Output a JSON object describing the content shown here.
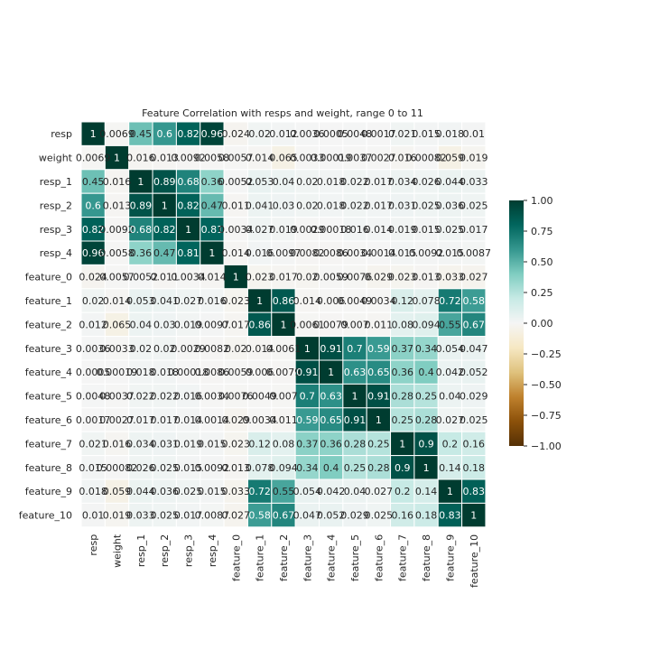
{
  "chart_data": {
    "type": "heatmap",
    "title": "Feature Correlation with resps and weight, range 0 to 11",
    "xlabel": "",
    "ylabel": "",
    "labels": [
      "resp",
      "weight",
      "resp_1",
      "resp_2",
      "resp_3",
      "resp_4",
      "feature_0",
      "feature_1",
      "feature_2",
      "feature_3",
      "feature_4",
      "feature_5",
      "feature_6",
      "feature_7",
      "feature_8",
      "feature_9",
      "feature_10"
    ],
    "cell_text": [
      [
        "1",
        "0.0069",
        "0.45",
        "0.6",
        "0.82",
        "0.96",
        "0.024",
        "0.02",
        "0.012",
        "0.0036",
        "0.0005",
        "0.0048",
        "0.0017",
        "0.021",
        "0.015",
        "0.018",
        "0.01"
      ],
      [
        "0.0069",
        "1",
        "0.016",
        "0.013",
        "0.0092",
        "0.0058",
        "0.0057",
        "0.014",
        "0.065",
        "0.0033",
        "0.00019",
        "0.0037",
        "0.0027",
        "0.016",
        "0.00082",
        "0.059",
        "0.019"
      ],
      [
        "0.45",
        "0.016",
        "1",
        "0.89",
        "0.68",
        "0.36",
        "0.0052",
        "0.053",
        "0.04",
        "0.02",
        "0.018",
        "0.022",
        "0.017",
        "0.034",
        "0.026",
        "0.044",
        "0.033"
      ],
      [
        "0.6",
        "0.013",
        "0.89",
        "1",
        "0.82",
        "0.47",
        "0.011",
        "0.041",
        "0.03",
        "0.02",
        "0.018",
        "0.022",
        "0.017",
        "0.031",
        "0.025",
        "0.036",
        "0.025"
      ],
      [
        "0.82",
        "0.0092",
        "0.68",
        "0.82",
        "1",
        "0.81",
        "0.0034",
        "0.027",
        "0.019",
        "0.0029",
        "0.00018",
        "0.016",
        "0.014",
        "0.019",
        "0.015",
        "0.025",
        "0.017"
      ],
      [
        "0.96",
        "0.0058",
        "0.36",
        "0.47",
        "0.81",
        "1",
        "0.014",
        "0.016",
        "0.0097",
        "0.0082",
        "0.0086",
        "0.0034",
        "0.0014",
        "0.015",
        "0.0092",
        "0.015",
        "0.0087"
      ],
      [
        "0.024",
        "0.0057",
        "0.0052",
        "0.011",
        "0.0034",
        "0.014",
        "1",
        "0.023",
        "0.017",
        "0.02",
        "0.0059",
        "0.0076",
        "0.029",
        "0.023",
        "0.013",
        "0.033",
        "0.027"
      ],
      [
        "0.02",
        "0.014",
        "0.053",
        "0.041",
        "0.027",
        "0.016",
        "0.023",
        "1",
        "0.86",
        "0.014",
        "0.006",
        "0.0049",
        "0.0034",
        "0.12",
        "0.078",
        "0.72",
        "0.58"
      ],
      [
        "0.012",
        "0.065",
        "0.04",
        "0.03",
        "0.019",
        "0.0097",
        "0.017",
        "0.86",
        "1",
        "0.0061",
        "0.0079",
        "0.007",
        "0.011",
        "0.08",
        "0.094",
        "0.55",
        "0.67"
      ],
      [
        "0.0036",
        "0.0033",
        "0.02",
        "0.02",
        "0.0029",
        "0.0082",
        "0.02",
        "0.014",
        "0.0061",
        "1",
        "0.91",
        "0.7",
        "0.59",
        "0.37",
        "0.34",
        "0.054",
        "0.047"
      ],
      [
        "0.0005",
        "0.00019",
        "0.018",
        "0.018",
        "0.00018",
        "0.0086",
        "0.0059",
        "0.006",
        "0.0079",
        "0.91",
        "1",
        "0.63",
        "0.65",
        "0.36",
        "0.4",
        "0.042",
        "0.052"
      ],
      [
        "0.0048",
        "0.0037",
        "0.022",
        "0.022",
        "0.016",
        "0.0034",
        "0.0076",
        "0.0049",
        "0.007",
        "0.7",
        "0.63",
        "1",
        "0.91",
        "0.28",
        "0.25",
        "0.04",
        "0.029"
      ],
      [
        "0.0017",
        "0.0027",
        "0.017",
        "0.017",
        "0.014",
        "0.0014",
        "0.029",
        "0.0034",
        "0.011",
        "0.59",
        "0.65",
        "0.91",
        "1",
        "0.25",
        "0.28",
        "0.027",
        "0.025"
      ],
      [
        "0.021",
        "0.016",
        "0.034",
        "0.031",
        "0.019",
        "0.015",
        "0.023",
        "0.12",
        "0.08",
        "0.37",
        "0.36",
        "0.28",
        "0.25",
        "1",
        "0.9",
        "0.2",
        "0.16"
      ],
      [
        "0.015",
        "0.00082",
        "0.026",
        "0.025",
        "0.015",
        "0.0092",
        "0.013",
        "0.078",
        "0.094",
        "0.34",
        "0.4",
        "0.25",
        "0.28",
        "0.9",
        "1",
        "0.14",
        "0.18"
      ],
      [
        "0.018",
        "0.059",
        "0.044",
        "0.036",
        "0.025",
        "0.015",
        "0.033",
        "0.72",
        "0.55",
        "0.054",
        "0.042",
        "0.04",
        "0.027",
        "0.2",
        "0.14",
        "1",
        "0.83"
      ],
      [
        "0.01",
        "0.019",
        "0.033",
        "0.025",
        "0.017",
        "0.0087",
        "0.027",
        "0.58",
        "0.67",
        "0.047",
        "0.052",
        "0.029",
        "0.025",
        "0.16",
        "0.18",
        "0.83",
        "1"
      ]
    ],
    "values": [
      [
        1,
        -0.0069,
        0.45,
        0.6,
        0.82,
        0.96,
        -0.024,
        0.02,
        0.012,
        0.0036,
        0.0005,
        0.0048,
        0.0017,
        0.021,
        0.015,
        0.018,
        0.01
      ],
      [
        -0.0069,
        1,
        -0.016,
        -0.013,
        -0.0092,
        -0.0058,
        -0.0057,
        -0.014,
        -0.065,
        -0.0033,
        -0.00019,
        -0.0037,
        -0.0027,
        -0.016,
        -0.00082,
        -0.059,
        -0.019
      ],
      [
        0.45,
        -0.016,
        1,
        0.89,
        0.68,
        0.36,
        0.0052,
        0.053,
        0.04,
        0.02,
        0.018,
        0.022,
        0.017,
        0.034,
        0.026,
        0.044,
        0.033
      ],
      [
        0.6,
        -0.013,
        0.89,
        1,
        0.82,
        0.47,
        -0.011,
        0.041,
        0.03,
        0.02,
        0.018,
        0.022,
        0.017,
        0.031,
        0.025,
        0.036,
        0.025
      ],
      [
        0.82,
        -0.0092,
        0.68,
        0.82,
        1,
        0.81,
        -0.0034,
        0.027,
        0.019,
        -0.0029,
        -0.00018,
        0.016,
        0.014,
        0.019,
        0.015,
        0.025,
        0.017
      ],
      [
        0.96,
        -0.0058,
        0.36,
        0.47,
        0.81,
        1,
        -0.014,
        0.016,
        0.0097,
        -0.0082,
        -0.0086,
        -0.0034,
        -0.0014,
        0.015,
        0.0092,
        0.015,
        0.0087
      ],
      [
        -0.024,
        -0.0057,
        0.0052,
        -0.011,
        -0.0034,
        -0.014,
        1,
        -0.023,
        -0.017,
        -0.02,
        -0.0059,
        -0.0076,
        -0.029,
        -0.023,
        -0.013,
        -0.033,
        -0.027
      ],
      [
        0.02,
        -0.014,
        0.053,
        0.041,
        0.027,
        0.016,
        -0.023,
        1,
        0.86,
        -0.014,
        -0.006,
        -0.0049,
        -0.0034,
        0.12,
        0.078,
        0.72,
        0.58
      ],
      [
        0.012,
        -0.065,
        0.04,
        0.03,
        0.019,
        0.0097,
        -0.017,
        0.86,
        1,
        -0.0061,
        -0.0079,
        -0.007,
        -0.011,
        0.08,
        0.094,
        0.55,
        0.67
      ],
      [
        0.0036,
        -0.0033,
        0.02,
        0.02,
        -0.0029,
        -0.0082,
        -0.02,
        -0.014,
        -0.0061,
        1,
        0.91,
        0.7,
        0.59,
        0.37,
        0.34,
        0.054,
        0.047
      ],
      [
        0.0005,
        -0.00019,
        0.018,
        0.018,
        -0.00018,
        -0.0086,
        -0.0059,
        -0.006,
        -0.0079,
        0.91,
        1,
        0.63,
        0.65,
        0.36,
        0.4,
        0.042,
        0.052
      ],
      [
        0.0048,
        -0.0037,
        0.022,
        0.022,
        0.016,
        -0.0034,
        -0.0076,
        -0.0049,
        -0.007,
        0.7,
        0.63,
        1,
        0.91,
        0.28,
        0.25,
        0.04,
        0.029
      ],
      [
        0.0017,
        -0.0027,
        0.017,
        0.017,
        0.014,
        -0.0014,
        -0.029,
        -0.0034,
        -0.011,
        0.59,
        0.65,
        0.91,
        1,
        0.25,
        0.28,
        0.027,
        0.025
      ],
      [
        0.021,
        -0.016,
        0.034,
        0.031,
        0.019,
        0.015,
        -0.023,
        0.12,
        0.08,
        0.37,
        0.36,
        0.28,
        0.25,
        1,
        0.9,
        0.2,
        0.16
      ],
      [
        0.015,
        -0.00082,
        0.026,
        0.025,
        0.015,
        0.0092,
        -0.013,
        0.078,
        0.094,
        0.34,
        0.4,
        0.25,
        0.28,
        0.9,
        1,
        0.14,
        0.18
      ],
      [
        0.018,
        -0.059,
        0.044,
        0.036,
        0.025,
        0.015,
        -0.033,
        0.72,
        0.55,
        0.054,
        0.042,
        0.04,
        0.027,
        0.2,
        0.14,
        1,
        0.83
      ],
      [
        0.01,
        -0.019,
        0.033,
        0.025,
        0.017,
        0.0087,
        -0.027,
        0.58,
        0.67,
        0.047,
        0.052,
        0.029,
        0.025,
        0.16,
        0.18,
        0.83,
        1
      ]
    ],
    "color_range": [
      -1,
      1
    ],
    "colormap_stops": [
      "#543005",
      "#8c510a",
      "#bf812d",
      "#dfc27d",
      "#f6e8c3",
      "#f5f5f5",
      "#c7eae5",
      "#80cdc1",
      "#35978f",
      "#01665e",
      "#003c30"
    ],
    "colorbar_ticks": [
      "1.00",
      "0.75",
      "0.50",
      "0.25",
      "0.00",
      "−0.25",
      "−0.50",
      "−0.75",
      "−1.00"
    ],
    "colorbar_tick_values": [
      1.0,
      0.75,
      0.5,
      0.25,
      0.0,
      -0.25,
      -0.5,
      -0.75,
      -1.0
    ],
    "grid_color": "#ffffff",
    "text_dark": "#262626",
    "text_light": "#ffffff",
    "legend": "colorbar-right"
  }
}
